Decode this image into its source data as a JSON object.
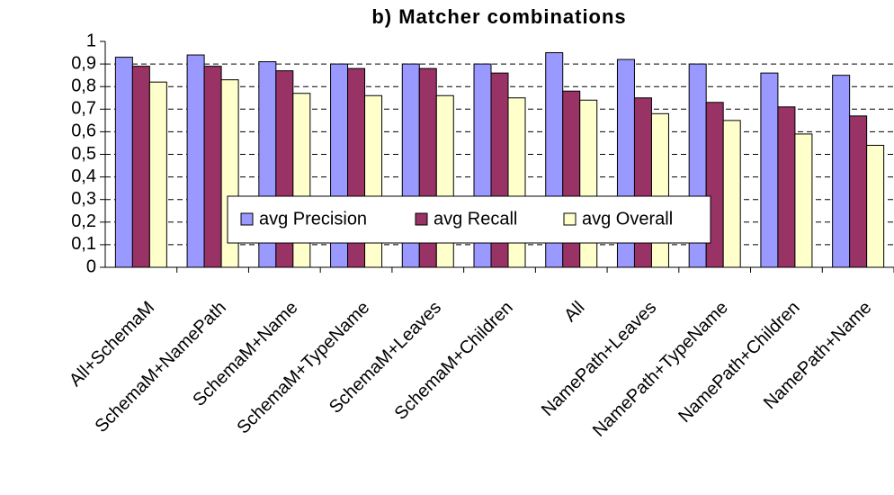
{
  "chart_data": {
    "type": "bar",
    "title": "b) Matcher combinations",
    "categories": [
      "All+SchemaM",
      "SchemaM+NamePath",
      "SchemaM+Name",
      "SchemaM+TypeName",
      "SchemaM+Leaves",
      "SchemaM+Children",
      "All",
      "NamePath+Leaves",
      "NamePath+TypeName",
      "NamePath+Children",
      "NamePath+Name"
    ],
    "series": [
      {
        "name": "avg Precision",
        "color": "#9999ff",
        "values": [
          0.93,
          0.94,
          0.91,
          0.9,
          0.9,
          0.9,
          0.95,
          0.92,
          0.9,
          0.86,
          0.85
        ]
      },
      {
        "name": "avg Recall",
        "color": "#993366",
        "values": [
          0.89,
          0.89,
          0.87,
          0.88,
          0.88,
          0.86,
          0.78,
          0.75,
          0.73,
          0.71,
          0.67
        ]
      },
      {
        "name": "avg Overall",
        "color": "#ffffcc",
        "values": [
          0.82,
          0.83,
          0.77,
          0.76,
          0.76,
          0.75,
          0.74,
          0.68,
          0.65,
          0.59,
          0.54
        ]
      }
    ],
    "ylim": [
      0,
      1
    ],
    "yticks": [
      0,
      {
        "value": 0.1,
        "label": "0,1"
      },
      {
        "value": 0.2,
        "label": "0,2"
      },
      {
        "value": 0.3,
        "label": "0,3"
      },
      {
        "value": 0.4,
        "label": "0,4"
      },
      {
        "value": 0.5,
        "label": "0,5"
      },
      {
        "value": 0.6,
        "label": "0,6"
      },
      {
        "value": 0.7,
        "label": "0,7"
      },
      {
        "value": 0.8,
        "label": "0,8"
      },
      {
        "value": 0.9,
        "label": "0,9"
      },
      1
    ],
    "grid": true
  }
}
